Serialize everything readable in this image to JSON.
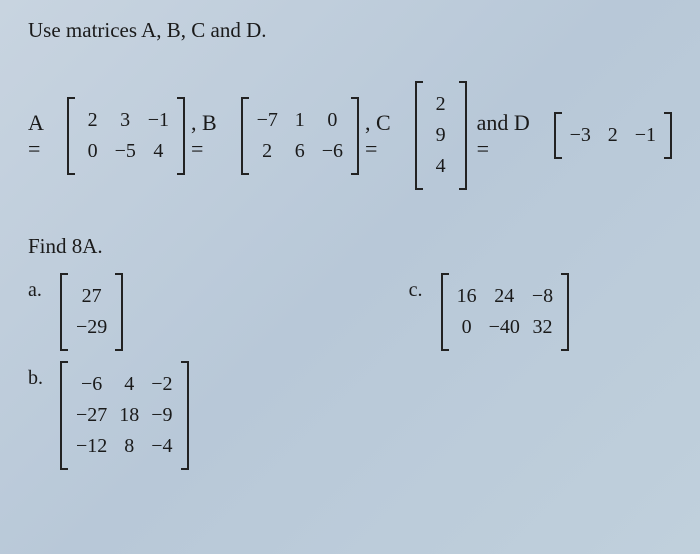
{
  "instruction": "Use matrices A, B, C and D.",
  "labels": {
    "A": "A =",
    "B": ", B =",
    "C": ", C =",
    "D": "and D =",
    "find": "Find 8A.",
    "a": "a.",
    "b": "b.",
    "c": "c."
  },
  "matrices": {
    "A": {
      "rows": 2,
      "cols": 3,
      "data": [
        "2",
        "3",
        "−1",
        "0",
        "−5",
        "4"
      ]
    },
    "B": {
      "rows": 2,
      "cols": 3,
      "data": [
        "−7",
        "1",
        "0",
        "2",
        "6",
        "−6"
      ]
    },
    "C": {
      "rows": 3,
      "cols": 1,
      "data": [
        "2",
        "9",
        "4"
      ]
    },
    "D": {
      "rows": 1,
      "cols": 3,
      "data": [
        "−3",
        "2",
        "−1"
      ]
    }
  },
  "answers": {
    "a": {
      "rows": 2,
      "cols": 1,
      "data": [
        "27",
        "−29"
      ]
    },
    "b": {
      "rows": 3,
      "cols": 3,
      "data": [
        "−6",
        "4",
        "−2",
        "−27",
        "18",
        "−9",
        "−12",
        "8",
        "−4"
      ]
    },
    "c": {
      "rows": 2,
      "cols": 3,
      "data": [
        "16",
        "24",
        "−8",
        "0",
        "−40",
        "32"
      ]
    }
  },
  "style": {
    "cell_fontsize": 20,
    "bracket_color": "#222222"
  }
}
